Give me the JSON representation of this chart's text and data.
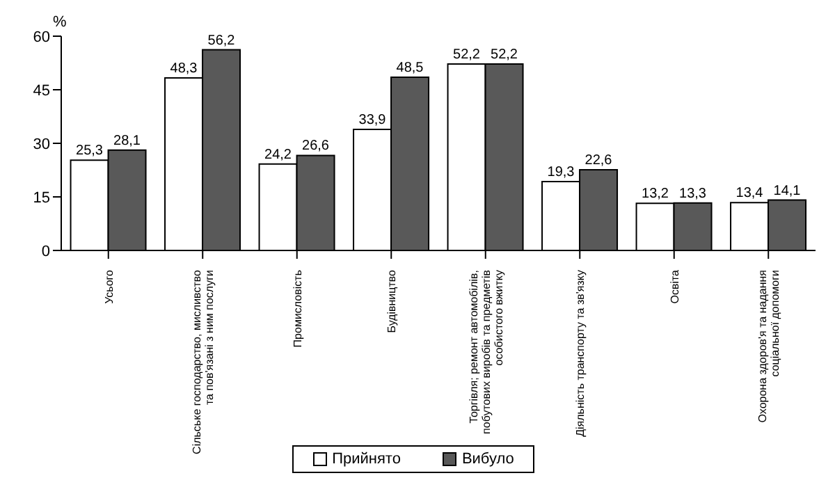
{
  "chart_data": {
    "type": "bar",
    "ylabel": "%",
    "categories": [
      "Усього",
      "Сільське господарство, мисливство та пов'язані з ним послуги",
      "Промисловість",
      "Будівництво",
      "Торгівля; ремонт автомобілів, побутових виробів та предметів особистого вжитку",
      "Діяльність транспорту та зв'язку",
      "Освіта",
      "Охорона здоров'я та надання соціальної допомоги"
    ],
    "series": [
      {
        "name": "Прийнято",
        "color": "#ffffff",
        "values": [
          25.3,
          48.3,
          24.2,
          33.9,
          52.2,
          19.3,
          13.2,
          13.4
        ],
        "value_labels": [
          "25,3",
          "48,3",
          "24,2",
          "33,9",
          "52,2",
          "19,3",
          "13,2",
          "13,4"
        ]
      },
      {
        "name": "Вибуло",
        "color": "#595959",
        "values": [
          28.1,
          56.2,
          26.6,
          48.5,
          52.2,
          22.6,
          13.3,
          14.1
        ],
        "value_labels": [
          "28,1",
          "56,2",
          "26,6",
          "48,5",
          "52,2",
          "22,6",
          "13,3",
          "14,1"
        ]
      }
    ],
    "ylim": [
      0,
      60
    ],
    "yticks": [
      0,
      15,
      30,
      45,
      60
    ],
    "grid": false,
    "legend": "bottom"
  }
}
